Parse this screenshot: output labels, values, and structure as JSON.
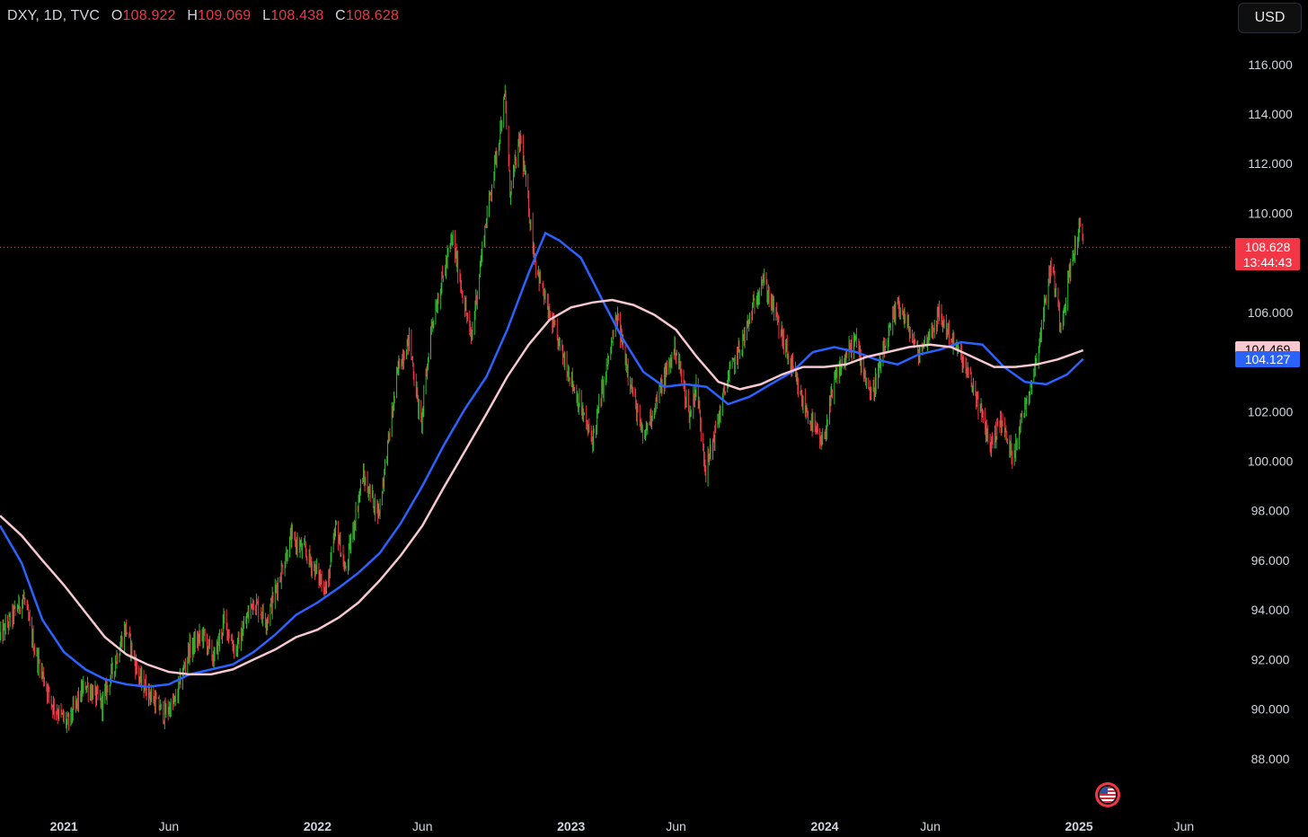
{
  "header": {
    "symbol": "DXY, 1D, TVC",
    "open_label": "O",
    "open": "108.922",
    "high_label": "H",
    "high": "109.069",
    "low_label": "L",
    "low": "108.438",
    "close_label": "C",
    "close": "108.628"
  },
  "currency_button": "USD",
  "price_tag": {
    "price": "108.628",
    "countdown": "13:44:43",
    "color": "#f23645"
  },
  "ma_tags": [
    {
      "value": "104.469",
      "color": "#f8c8d0"
    },
    {
      "value": "104.127",
      "color": "#2962ff"
    }
  ],
  "flag_icon": "us-flag-icon",
  "chart_data": {
    "type": "candlestick",
    "title": "DXY",
    "interval": "1D",
    "source": "TVC",
    "y_ticks": [
      "116.000",
      "114.000",
      "112.000",
      "110.000",
      "108.000",
      "106.000",
      "104.000",
      "102.000",
      "100.000",
      "98.000",
      "96.000",
      "94.000",
      "92.000",
      "90.000",
      "88.000"
    ],
    "hidden_y_ticks": [
      "108.000",
      "104.000"
    ],
    "ylim": [
      86.0,
      118.6
    ],
    "x_ticks": [
      {
        "label": "2021",
        "date": "2021-01-01",
        "bold": true
      },
      {
        "label": "Jun",
        "date": "2021-06-01",
        "bold": false
      },
      {
        "label": "2022",
        "date": "2022-01-01",
        "bold": true
      },
      {
        "label": "Jun",
        "date": "2022-06-01",
        "bold": false
      },
      {
        "label": "2023",
        "date": "2023-01-01",
        "bold": true
      },
      {
        "label": "Jun",
        "date": "2023-06-01",
        "bold": false
      },
      {
        "label": "2024",
        "date": "2024-01-01",
        "bold": true
      },
      {
        "label": "Jun",
        "date": "2024-06-01",
        "bold": false
      },
      {
        "label": "2025",
        "date": "2025-01-01",
        "bold": true
      },
      {
        "label": "Jun",
        "date": "2025-06-01",
        "bold": false
      }
    ],
    "xlim": [
      "2020-10-01",
      "2025-08-10"
    ],
    "up_color": "#2ebd2e",
    "down_color": "#f23645",
    "last_price": 108.628,
    "price_path": [
      [
        "2020-10-01",
        92.9
      ],
      [
        "2020-10-20",
        93.8
      ],
      [
        "2020-11-04",
        94.5
      ],
      [
        "2020-11-20",
        92.4
      ],
      [
        "2020-12-15",
        90.2
      ],
      [
        "2021-01-06",
        89.4
      ],
      [
        "2021-02-01",
        91.0
      ],
      [
        "2021-02-25",
        90.2
      ],
      [
        "2021-03-31",
        93.3
      ],
      [
        "2021-04-20",
        91.2
      ],
      [
        "2021-05-25",
        89.8
      ],
      [
        "2021-06-10",
        90.3
      ],
      [
        "2021-06-30",
        92.4
      ],
      [
        "2021-07-20",
        93.0
      ],
      [
        "2021-08-05",
        92.0
      ],
      [
        "2021-08-20",
        93.6
      ],
      [
        "2021-09-05",
        92.3
      ],
      [
        "2021-09-30",
        94.4
      ],
      [
        "2021-10-20",
        93.6
      ],
      [
        "2021-11-24",
        96.9
      ],
      [
        "2021-12-15",
        96.3
      ],
      [
        "2022-01-14",
        94.8
      ],
      [
        "2022-01-28",
        97.4
      ],
      [
        "2022-02-10",
        95.5
      ],
      [
        "2022-03-07",
        99.4
      ],
      [
        "2022-03-30",
        97.9
      ],
      [
        "2022-04-28",
        103.9
      ],
      [
        "2022-05-13",
        104.9
      ],
      [
        "2022-05-30",
        101.4
      ],
      [
        "2022-06-14",
        105.5
      ],
      [
        "2022-07-14",
        109.0
      ],
      [
        "2022-08-10",
        104.9
      ],
      [
        "2022-08-29",
        109.2
      ],
      [
        "2022-09-28",
        114.7
      ],
      [
        "2022-10-05",
        110.9
      ],
      [
        "2022-10-20",
        113.0
      ],
      [
        "2022-11-10",
        108.1
      ],
      [
        "2022-11-30",
        105.9
      ],
      [
        "2022-12-30",
        103.5
      ],
      [
        "2023-01-26",
        101.2
      ],
      [
        "2023-02-01",
        100.9
      ],
      [
        "2023-03-08",
        105.8
      ],
      [
        "2023-04-14",
        100.9
      ],
      [
        "2023-05-31",
        104.6
      ],
      [
        "2023-06-21",
        101.8
      ],
      [
        "2023-06-30",
        103.1
      ],
      [
        "2023-07-14",
        99.6
      ],
      [
        "2023-08-15",
        103.4
      ],
      [
        "2023-09-06",
        104.9
      ],
      [
        "2023-10-03",
        107.4
      ],
      [
        "2023-10-20",
        106.1
      ],
      [
        "2023-11-28",
        102.5
      ],
      [
        "2023-12-28",
        100.6
      ],
      [
        "2024-01-17",
        103.4
      ],
      [
        "2024-02-14",
        104.9
      ],
      [
        "2024-03-08",
        102.6
      ],
      [
        "2024-04-16",
        106.4
      ],
      [
        "2024-05-15",
        104.3
      ],
      [
        "2024-06-14",
        105.9
      ],
      [
        "2024-07-15",
        104.2
      ],
      [
        "2024-08-05",
        102.7
      ],
      [
        "2024-08-27",
        100.6
      ],
      [
        "2024-09-10",
        101.7
      ],
      [
        "2024-09-27",
        100.2
      ],
      [
        "2024-10-31",
        104.0
      ],
      [
        "2024-11-22",
        108.0
      ],
      [
        "2024-12-06",
        105.5
      ],
      [
        "2024-12-20",
        107.9
      ],
      [
        "2025-01-02",
        109.4
      ],
      [
        "2025-01-07",
        108.6
      ]
    ],
    "series": [
      {
        "name": "",
        "color": "#2962ff",
        "points": [
          [
            "2020-10-01",
            97.4
          ],
          [
            "2020-11-01",
            95.9
          ],
          [
            "2020-12-01",
            93.6
          ],
          [
            "2021-01-01",
            92.3
          ],
          [
            "2021-02-01",
            91.6
          ],
          [
            "2021-03-01",
            91.2
          ],
          [
            "2021-04-01",
            91.0
          ],
          [
            "2021-05-01",
            90.9
          ],
          [
            "2021-06-01",
            91.0
          ],
          [
            "2021-07-01",
            91.4
          ],
          [
            "2021-08-01",
            91.6
          ],
          [
            "2021-09-01",
            91.8
          ],
          [
            "2021-10-01",
            92.3
          ],
          [
            "2021-11-01",
            93.0
          ],
          [
            "2021-12-01",
            93.8
          ],
          [
            "2022-01-01",
            94.3
          ],
          [
            "2022-02-01",
            94.9
          ],
          [
            "2022-03-01",
            95.5
          ],
          [
            "2022-04-01",
            96.3
          ],
          [
            "2022-05-01",
            97.5
          ],
          [
            "2022-06-01",
            99.0
          ],
          [
            "2022-07-01",
            100.6
          ],
          [
            "2022-08-01",
            102.1
          ],
          [
            "2022-09-01",
            103.4
          ],
          [
            "2022-10-01",
            105.3
          ],
          [
            "2022-11-01",
            107.6
          ],
          [
            "2022-11-25",
            109.2
          ],
          [
            "2022-12-15",
            108.9
          ],
          [
            "2023-01-15",
            108.2
          ],
          [
            "2023-02-15",
            106.5
          ],
          [
            "2023-03-15",
            105.0
          ],
          [
            "2023-04-15",
            103.6
          ],
          [
            "2023-05-15",
            103.0
          ],
          [
            "2023-06-15",
            103.1
          ],
          [
            "2023-07-15",
            103.0
          ],
          [
            "2023-08-15",
            102.3
          ],
          [
            "2023-09-15",
            102.6
          ],
          [
            "2023-10-15",
            103.1
          ],
          [
            "2023-11-15",
            103.6
          ],
          [
            "2023-12-15",
            104.4
          ],
          [
            "2024-01-15",
            104.6
          ],
          [
            "2024-02-15",
            104.4
          ],
          [
            "2024-03-15",
            104.1
          ],
          [
            "2024-04-15",
            103.9
          ],
          [
            "2024-05-15",
            104.3
          ],
          [
            "2024-06-15",
            104.5
          ],
          [
            "2024-07-15",
            104.8
          ],
          [
            "2024-08-15",
            104.7
          ],
          [
            "2024-09-15",
            103.8
          ],
          [
            "2024-10-15",
            103.2
          ],
          [
            "2024-11-15",
            103.1
          ],
          [
            "2024-12-15",
            103.5
          ],
          [
            "2025-01-07",
            104.127
          ]
        ]
      },
      {
        "name": "",
        "color": "#f8c8d0",
        "points": [
          [
            "2020-10-01",
            97.8
          ],
          [
            "2020-11-01",
            97.0
          ],
          [
            "2020-12-01",
            96.0
          ],
          [
            "2021-01-01",
            95.0
          ],
          [
            "2021-02-01",
            93.9
          ],
          [
            "2021-03-01",
            92.9
          ],
          [
            "2021-04-01",
            92.2
          ],
          [
            "2021-05-01",
            91.8
          ],
          [
            "2021-06-01",
            91.5
          ],
          [
            "2021-07-01",
            91.4
          ],
          [
            "2021-08-01",
            91.4
          ],
          [
            "2021-09-01",
            91.6
          ],
          [
            "2021-10-01",
            92.0
          ],
          [
            "2021-11-01",
            92.4
          ],
          [
            "2021-12-01",
            92.9
          ],
          [
            "2022-01-01",
            93.2
          ],
          [
            "2022-02-01",
            93.7
          ],
          [
            "2022-03-01",
            94.3
          ],
          [
            "2022-04-01",
            95.2
          ],
          [
            "2022-05-01",
            96.2
          ],
          [
            "2022-06-01",
            97.4
          ],
          [
            "2022-07-01",
            98.9
          ],
          [
            "2022-08-01",
            100.4
          ],
          [
            "2022-09-01",
            101.9
          ],
          [
            "2022-10-01",
            103.4
          ],
          [
            "2022-11-01",
            104.7
          ],
          [
            "2022-12-01",
            105.7
          ],
          [
            "2023-01-01",
            106.2
          ],
          [
            "2023-02-01",
            106.4
          ],
          [
            "2023-03-01",
            106.5
          ],
          [
            "2023-04-01",
            106.3
          ],
          [
            "2023-05-01",
            105.9
          ],
          [
            "2023-06-01",
            105.3
          ],
          [
            "2023-07-01",
            104.2
          ],
          [
            "2023-08-01",
            103.2
          ],
          [
            "2023-09-01",
            102.9
          ],
          [
            "2023-10-01",
            103.1
          ],
          [
            "2023-11-01",
            103.5
          ],
          [
            "2023-12-01",
            103.8
          ],
          [
            "2024-01-01",
            103.8
          ],
          [
            "2024-02-01",
            103.9
          ],
          [
            "2024-03-01",
            104.2
          ],
          [
            "2024-04-01",
            104.4
          ],
          [
            "2024-05-01",
            104.6
          ],
          [
            "2024-06-01",
            104.7
          ],
          [
            "2024-07-01",
            104.6
          ],
          [
            "2024-08-01",
            104.2
          ],
          [
            "2024-09-01",
            103.8
          ],
          [
            "2024-10-01",
            103.8
          ],
          [
            "2024-11-01",
            103.9
          ],
          [
            "2024-12-01",
            104.1
          ],
          [
            "2025-01-07",
            104.469
          ]
        ]
      }
    ]
  }
}
